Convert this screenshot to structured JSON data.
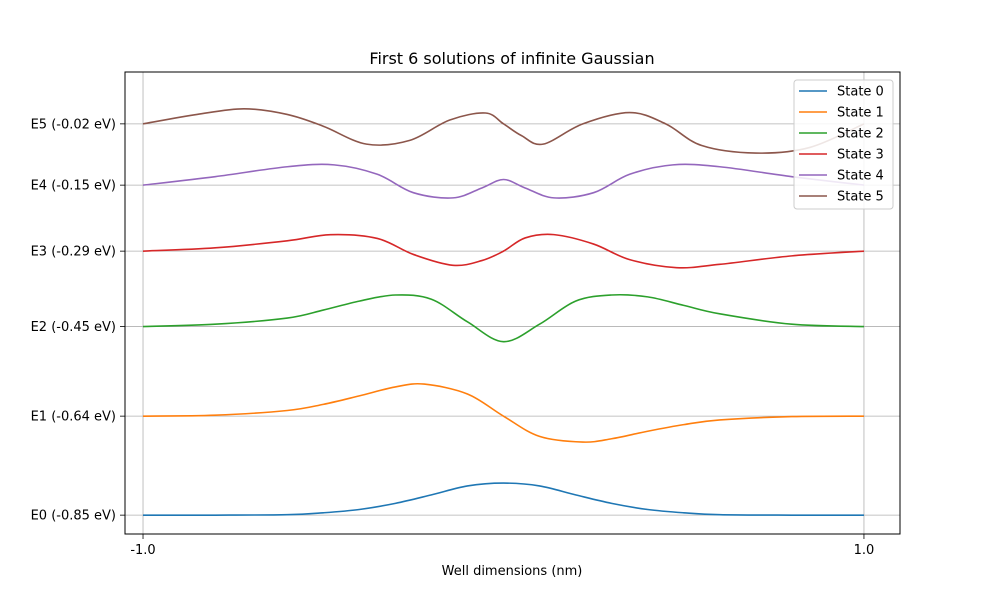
{
  "chart_data": {
    "type": "line",
    "title": "First 6 solutions of infinite Gaussian",
    "xlabel": "Well dimensions (nm)",
    "ylabel": "",
    "xlim": [
      -1.05,
      1.1
    ],
    "ylim": [
      -0.89,
      0.09
    ],
    "x_ticks": [
      {
        "value": -1.0,
        "label": "-1.0"
      },
      {
        "value": 1.0,
        "label": "1.0"
      }
    ],
    "y_ticks": [
      {
        "value": -0.85,
        "label": "E0 (-0.85 eV)"
      },
      {
        "value": -0.64,
        "label": "E1 (-0.64 eV)"
      },
      {
        "value": -0.45,
        "label": "E2 (-0.45 eV)"
      },
      {
        "value": -0.29,
        "label": "E3 (-0.29 eV)"
      },
      {
        "value": -0.15,
        "label": "E4 (-0.15 eV)"
      },
      {
        "value": -0.02,
        "label": "E5 (-0.02 eV)"
      }
    ],
    "grid": true,
    "legend_position": "top-right",
    "series": [
      {
        "name": "State 0",
        "color": "#1f77b4",
        "x": [
          -1.0,
          -0.8,
          -0.6,
          -0.5,
          -0.4,
          -0.3,
          -0.2,
          -0.1,
          0.0,
          0.1,
          0.2,
          0.3,
          0.4,
          0.5,
          0.6,
          0.8,
          1.0
        ],
        "y": [
          -0.85,
          -0.85,
          -0.849,
          -0.845,
          -0.838,
          -0.825,
          -0.807,
          -0.788,
          -0.782,
          -0.788,
          -0.807,
          -0.825,
          -0.838,
          -0.845,
          -0.849,
          -0.85,
          -0.85
        ]
      },
      {
        "name": "State 1",
        "color": "#ff7f0e",
        "x": [
          -1.0,
          -0.8,
          -0.6,
          -0.5,
          -0.4,
          -0.3,
          -0.22,
          -0.1,
          0.0,
          0.1,
          0.22,
          0.3,
          0.4,
          0.5,
          0.6,
          0.8,
          1.0
        ],
        "y": [
          -0.64,
          -0.638,
          -0.628,
          -0.615,
          -0.597,
          -0.578,
          -0.572,
          -0.593,
          -0.64,
          -0.683,
          -0.695,
          -0.688,
          -0.672,
          -0.658,
          -0.648,
          -0.641,
          -0.64
        ]
      },
      {
        "name": "State 2",
        "color": "#2ca02c",
        "x": [
          -1.0,
          -0.8,
          -0.6,
          -0.5,
          -0.4,
          -0.3,
          -0.2,
          -0.1,
          0.0,
          0.1,
          0.2,
          0.3,
          0.4,
          0.5,
          0.6,
          0.8,
          1.0
        ],
        "y": [
          -0.45,
          -0.445,
          -0.432,
          -0.415,
          -0.396,
          -0.383,
          -0.392,
          -0.44,
          -0.482,
          -0.445,
          -0.396,
          -0.383,
          -0.387,
          -0.405,
          -0.423,
          -0.445,
          -0.45
        ]
      },
      {
        "name": "State 3",
        "color": "#d62728",
        "x": [
          -1.0,
          -0.8,
          -0.6,
          -0.48,
          -0.35,
          -0.25,
          -0.14,
          -0.06,
          0.0,
          0.06,
          0.14,
          0.25,
          0.35,
          0.48,
          0.6,
          0.8,
          1.0
        ],
        "y": [
          -0.29,
          -0.283,
          -0.268,
          -0.255,
          -0.263,
          -0.297,
          -0.32,
          -0.31,
          -0.29,
          -0.262,
          -0.255,
          -0.275,
          -0.308,
          -0.325,
          -0.318,
          -0.3,
          -0.29
        ]
      },
      {
        "name": "State 4",
        "color": "#9467bd",
        "x": [
          -1.0,
          -0.8,
          -0.6,
          -0.47,
          -0.35,
          -0.25,
          -0.14,
          -0.06,
          0.0,
          0.06,
          0.14,
          0.25,
          0.35,
          0.47,
          0.6,
          0.8,
          1.0
        ],
        "y": [
          -0.15,
          -0.132,
          -0.111,
          -0.107,
          -0.127,
          -0.166,
          -0.177,
          -0.156,
          -0.138,
          -0.156,
          -0.177,
          -0.166,
          -0.127,
          -0.107,
          -0.111,
          -0.132,
          -0.15
        ]
      },
      {
        "name": "State 5",
        "color": "#8c564b",
        "x": [
          -1.0,
          -0.85,
          -0.72,
          -0.6,
          -0.5,
          -0.38,
          -0.26,
          -0.15,
          -0.05,
          0.0,
          0.05,
          0.11,
          0.22,
          0.35,
          0.45,
          0.55,
          0.7,
          0.85,
          1.0
        ],
        "y": [
          -0.02,
          0.0,
          0.012,
          0.0,
          -0.025,
          -0.063,
          -0.055,
          -0.012,
          0.003,
          -0.02,
          -0.045,
          -0.063,
          -0.02,
          0.004,
          -0.02,
          -0.066,
          -0.082,
          -0.07,
          -0.02
        ]
      }
    ]
  }
}
